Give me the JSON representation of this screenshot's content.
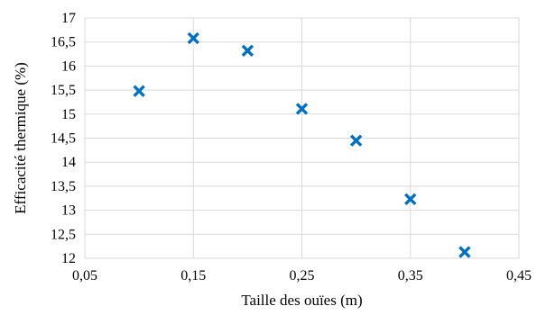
{
  "chart_data": {
    "type": "scatter",
    "title": "",
    "xlabel": "Taille  des ouïes  (m)",
    "ylabel": "Efficacité  thermique (%)",
    "xlim": [
      0.05,
      0.45
    ],
    "ylim": [
      12,
      17
    ],
    "xticks": [
      "0,05",
      "0,15",
      "0,25",
      "0,35",
      "0,45"
    ],
    "xtick_values": [
      0.05,
      0.15,
      0.25,
      0.35,
      0.45
    ],
    "yticks": [
      "12",
      "12,5",
      "13",
      "13,5",
      "14",
      "14,5",
      "15",
      "15,5",
      "16",
      "16,5",
      "17"
    ],
    "ytick_values": [
      12,
      12.5,
      13,
      13.5,
      14,
      14.5,
      15,
      15.5,
      16,
      16.5,
      17
    ],
    "grid": true,
    "marker": "x",
    "marker_color": "#0070C0",
    "grid_color": "#d9d9d9",
    "series": [
      {
        "x": [
          0.1,
          0.15,
          0.2,
          0.25,
          0.3,
          0.35,
          0.4
        ],
        "y": [
          15.48,
          16.58,
          16.32,
          15.11,
          14.45,
          13.23,
          12.13
        ]
      }
    ]
  }
}
